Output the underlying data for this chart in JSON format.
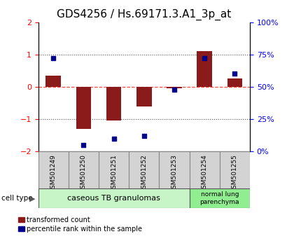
{
  "title": "GDS4256 / Hs.69171.3.A1_3p_at",
  "samples": [
    "GSM501249",
    "GSM501250",
    "GSM501251",
    "GSM501252",
    "GSM501253",
    "GSM501254",
    "GSM501255"
  ],
  "red_values": [
    0.35,
    -1.3,
    -1.05,
    -0.6,
    -0.05,
    1.1,
    0.25
  ],
  "blue_pct": [
    72,
    5,
    10,
    12,
    48,
    72,
    60
  ],
  "ylim": [
    -2,
    2
  ],
  "y2lim": [
    0,
    100
  ],
  "yticks_left": [
    -2,
    -1,
    0,
    1,
    2
  ],
  "yticks_right": [
    0,
    25,
    50,
    75,
    100
  ],
  "ytick_labels_right": [
    "0%",
    "25%",
    "50%",
    "75%",
    "100%"
  ],
  "red_color": "#8B1A1A",
  "blue_color": "#00008B",
  "bar_width": 0.5,
  "group1_label": "caseous TB granulomas",
  "group2_label": "normal lung\nparenchyma",
  "group1_color": "#c8f5c8",
  "group2_color": "#90ee90",
  "cell_type_label": "cell type",
  "legend_red": "transformed count",
  "legend_blue": "percentile rank within the sample",
  "hline_zero_color": "#FF4444",
  "hline_dotted_color": "#555555",
  "title_fontsize": 11,
  "tick_fontsize": 8,
  "label_fontsize": 8,
  "sample_box_color": "#d3d3d3",
  "sample_box_edge": "#888888"
}
